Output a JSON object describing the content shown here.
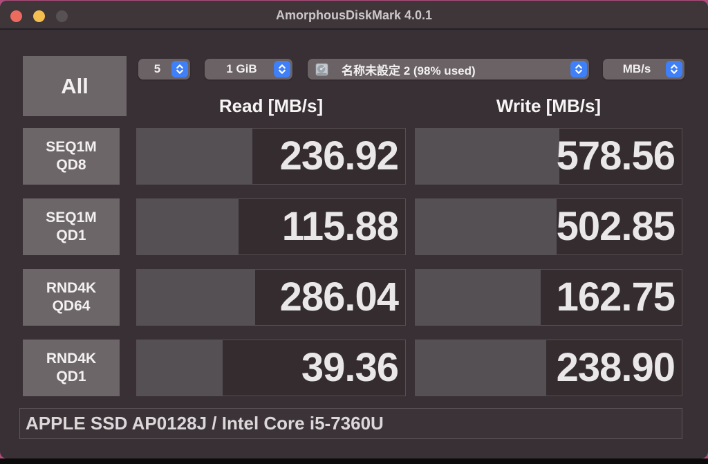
{
  "titlebar": {
    "title": "AmorphousDiskMark 4.0.1"
  },
  "toolbar": {
    "all_button": "All",
    "trials": "5",
    "test_size": "1 GiB",
    "target_volume": "名称未設定 2 (98% used)",
    "unit": "MB/s"
  },
  "columns": {
    "read": "Read [MB/s]",
    "write": "Write [MB/s]"
  },
  "rows": [
    {
      "test": "SEQ1M",
      "queue": "QD8",
      "read": "236.92",
      "write": "578.56",
      "read_fill": 43,
      "write_fill": 54
    },
    {
      "test": "SEQ1M",
      "queue": "QD1",
      "read": "115.88",
      "write": "502.85",
      "read_fill": 38,
      "write_fill": 53
    },
    {
      "test": "RND4K",
      "queue": "QD64",
      "read": "286.04",
      "write": "162.75",
      "read_fill": 44,
      "write_fill": 47
    },
    {
      "test": "RND4K",
      "queue": "QD1",
      "read": "39.36",
      "write": "238.90",
      "read_fill": 32,
      "write_fill": 49
    }
  ],
  "footer": {
    "device_info": "APPLE SSD AP0128J / Intel Core i5-7360U"
  },
  "chart_data": {
    "type": "bar",
    "title": "AmorphousDiskMark 4.0.1 results",
    "categories": [
      "SEQ1M QD8",
      "SEQ1M QD1",
      "RND4K QD64",
      "RND4K QD1"
    ],
    "series": [
      {
        "name": "Read [MB/s]",
        "values": [
          236.92,
          115.88,
          286.04,
          39.36
        ]
      },
      {
        "name": "Write [MB/s]",
        "values": [
          578.56,
          502.85,
          162.75,
          238.9
        ]
      }
    ]
  },
  "icons": {
    "stepper": "up-down-chevrons",
    "target": "hard-disk-icon"
  },
  "colors": {
    "accent_blue": "#3f7ff8",
    "traffic_red": "#ed6a5e",
    "traffic_yellow": "#f4bf4f",
    "traffic_disabled": "#575153",
    "window_bg": "#383034",
    "bar_fill": "#555054",
    "bar_empty": "#352c30",
    "button_gray": "#6d6669",
    "desktop_magenta": "#b04b7d"
  }
}
